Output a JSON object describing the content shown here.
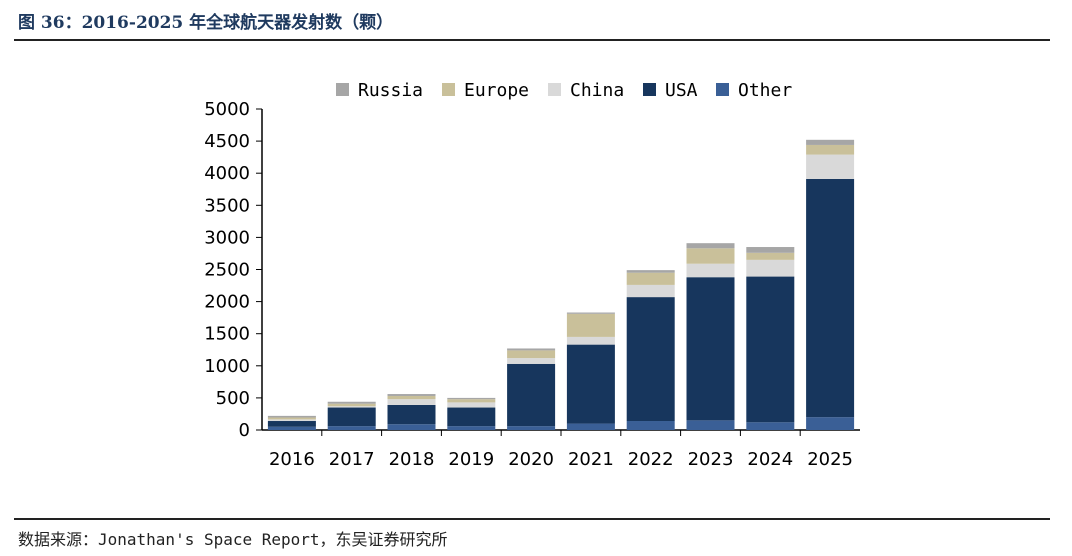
{
  "header": {
    "title": "图 36：2016-2025 年全球航天器发射数（颗）"
  },
  "footer": {
    "source": "数据来源：Jonathan's Space Report，东吴证券研究所"
  },
  "chart_data": {
    "type": "bar",
    "stacked": true,
    "title": "",
    "xlabel": "",
    "ylabel": "",
    "ylim": [
      0,
      5000
    ],
    "yticks": [
      0,
      500,
      1000,
      1500,
      2000,
      2500,
      3000,
      3500,
      4000,
      4500,
      5000
    ],
    "categories": [
      "2016",
      "2017",
      "2018",
      "2019",
      "2020",
      "2021",
      "2022",
      "2023",
      "2024",
      "2025"
    ],
    "legend_position": "top",
    "legend_order": [
      "Russia",
      "Europe",
      "China",
      "USA",
      "Other"
    ],
    "series": [
      {
        "name": "Other",
        "color": "#3a5f96",
        "values": [
          50,
          60,
          90,
          60,
          60,
          100,
          140,
          150,
          120,
          200
        ]
      },
      {
        "name": "USA",
        "color": "#17365d",
        "values": [
          90,
          290,
          300,
          290,
          970,
          1230,
          1930,
          2230,
          2270,
          3710
        ]
      },
      {
        "name": "China",
        "color": "#d9d9d9",
        "values": [
          25,
          20,
          90,
          80,
          90,
          120,
          190,
          210,
          260,
          380
        ]
      },
      {
        "name": "Europe",
        "color": "#c9c09a",
        "values": [
          30,
          40,
          50,
          50,
          120,
          360,
          190,
          240,
          110,
          150
        ]
      },
      {
        "name": "Russia",
        "color": "#a6a6a6",
        "values": [
          25,
          30,
          30,
          20,
          30,
          20,
          40,
          80,
          90,
          80
        ]
      }
    ]
  }
}
